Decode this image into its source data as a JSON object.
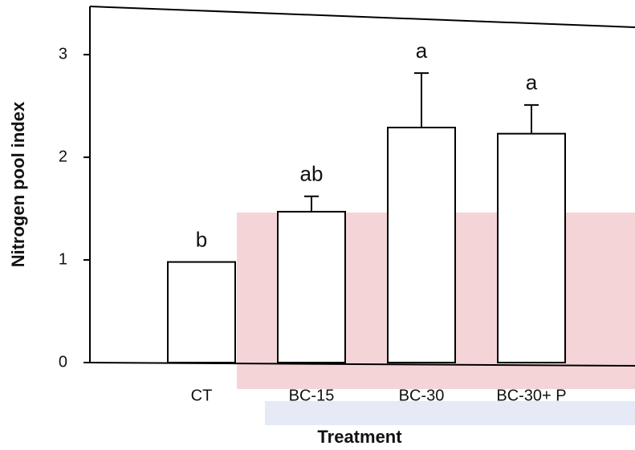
{
  "chart_data": {
    "type": "bar",
    "x_label": "Treatment",
    "y_label": "Nitrogen pool index",
    "categories": [
      "CT",
      "BC-15",
      "BC-30",
      "BC-30+ P"
    ],
    "values": [
      0.98,
      1.47,
      2.29,
      2.23
    ],
    "errors": [
      null,
      0.15,
      0.53,
      0.28
    ],
    "annotations": [
      "b",
      "ab",
      "a",
      "a"
    ],
    "color": "#ffffff",
    "ylim": [
      0,
      3.47
    ],
    "yticks": [
      0,
      1,
      2,
      3
    ]
  }
}
